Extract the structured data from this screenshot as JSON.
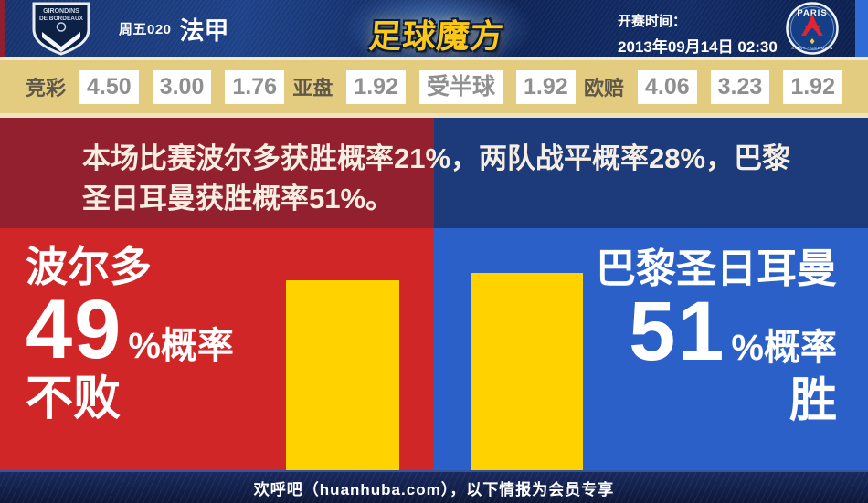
{
  "header": {
    "match_code": "周五020",
    "league": "法甲",
    "site_logo": "足球魔方",
    "kickoff_label": "开赛时间：",
    "kickoff_time": "2013年09月14日 02:30",
    "home_crest": {
      "line1": "GIRONDINS",
      "line2": "DE BORDEAUX"
    },
    "away_crest": {
      "top": "PARIS",
      "bottom": "SAINT - GERMAIN"
    }
  },
  "odds": {
    "jingcai": {
      "label": "竞彩",
      "values": [
        "4.50",
        "3.00",
        "1.76"
      ]
    },
    "yapan": {
      "label": "亚盘",
      "values": [
        "1.92",
        "受半球",
        "1.92"
      ]
    },
    "oupei": {
      "label": "欧赔",
      "values": [
        "4.06",
        "3.23",
        "1.92"
      ]
    }
  },
  "summary": {
    "line1": "本场比赛波尔多获胜概率21%，两队战平概率28%，巴黎",
    "line2": "圣日耳曼获胜概率51%。",
    "probabilities": {
      "home_win": "21%",
      "draw": "28%",
      "away_win": "51%"
    }
  },
  "home_panel": {
    "team": "波尔多",
    "percent": "49",
    "suffix": "%概率",
    "outcome": "不败"
  },
  "away_panel": {
    "team": "巴黎圣日耳曼",
    "percent": "51",
    "suffix": "%概率",
    "outcome": "胜"
  },
  "footer": {
    "text": "欢呼吧（huanhuba.com），以下情报为会员专享"
  },
  "colors": {
    "home_bright": "#d02628",
    "home_dark": "#93202f",
    "away_bright": "#2b60c8",
    "away_dark": "#1d3a7a",
    "bar_yellow": "#ffd200",
    "odds_bg": "#e3cc80",
    "logo_gold": "#fdc916",
    "footer_navy": "#121f4a"
  },
  "chart_data": {
    "type": "bar",
    "categories": [
      "波尔多 不败",
      "巴黎圣日耳曼 胜"
    ],
    "values": [
      49,
      51
    ],
    "ylim": [
      0,
      100
    ],
    "bar_colors": [
      "#ffd200",
      "#ffd200"
    ],
    "annotations": [
      "49%概率 不败",
      "51%概率 胜"
    ]
  }
}
